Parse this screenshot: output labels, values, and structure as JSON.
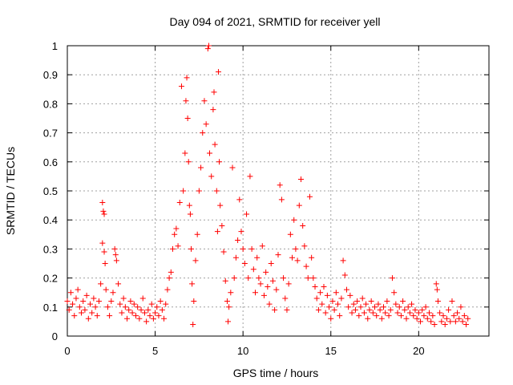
{
  "chart_data": {
    "type": "scatter",
    "title": "Day 094 of 2021, SRMTID for receiver yell",
    "xlabel": "GPS time / hours",
    "ylabel": "SRMTID / TECUs",
    "xlim": [
      0,
      24
    ],
    "ylim": [
      0,
      1
    ],
    "x_ticks": [
      0,
      5,
      10,
      15,
      20
    ],
    "x_tick_labels": [
      "0",
      "5",
      "10",
      "15",
      "20"
    ],
    "y_ticks": [
      0,
      0.1,
      0.2,
      0.3,
      0.4,
      0.5,
      0.6,
      0.7,
      0.8,
      0.9,
      1
    ],
    "y_tick_labels": [
      "0",
      "0.1",
      "0.2",
      "0.3",
      "0.4",
      "0.5",
      "0.6",
      "0.7",
      "0.8",
      "0.9",
      "1"
    ],
    "grid": true,
    "marker": "+",
    "series": [
      {
        "name": "SRMTID",
        "color": "#ff0000",
        "points": [
          [
            0.0,
            0.12
          ],
          [
            0.1,
            0.09
          ],
          [
            0.2,
            0.15
          ],
          [
            0.3,
            0.11
          ],
          [
            0.4,
            0.07
          ],
          [
            0.5,
            0.13
          ],
          [
            0.6,
            0.16
          ],
          [
            0.7,
            0.1
          ],
          [
            0.8,
            0.08
          ],
          [
            0.9,
            0.12
          ],
          [
            1.0,
            0.09
          ],
          [
            1.1,
            0.14
          ],
          [
            1.2,
            0.06
          ],
          [
            1.3,
            0.11
          ],
          [
            1.4,
            0.08
          ],
          [
            1.5,
            0.13
          ],
          [
            1.6,
            0.1
          ],
          [
            1.7,
            0.07
          ],
          [
            1.8,
            0.12
          ],
          [
            1.9,
            0.18
          ],
          [
            2.0,
            0.46
          ],
          [
            2.05,
            0.43
          ],
          [
            2.1,
            0.42
          ],
          [
            2.0,
            0.32
          ],
          [
            2.1,
            0.29
          ],
          [
            2.15,
            0.25
          ],
          [
            2.2,
            0.16
          ],
          [
            2.3,
            0.1
          ],
          [
            2.4,
            0.07
          ],
          [
            2.5,
            0.12
          ],
          [
            2.6,
            0.15
          ],
          [
            2.7,
            0.3
          ],
          [
            2.75,
            0.28
          ],
          [
            2.8,
            0.26
          ],
          [
            2.9,
            0.18
          ],
          [
            3.0,
            0.11
          ],
          [
            3.1,
            0.08
          ],
          [
            3.2,
            0.13
          ],
          [
            3.3,
            0.1
          ],
          [
            3.4,
            0.06
          ],
          [
            3.5,
            0.09
          ],
          [
            3.6,
            0.12
          ],
          [
            3.7,
            0.08
          ],
          [
            3.8,
            0.11
          ],
          [
            3.9,
            0.07
          ],
          [
            4.0,
            0.1
          ],
          [
            4.1,
            0.06
          ],
          [
            4.2,
            0.09
          ],
          [
            4.3,
            0.13
          ],
          [
            4.4,
            0.08
          ],
          [
            4.5,
            0.05
          ],
          [
            4.6,
            0.09
          ],
          [
            4.7,
            0.07
          ],
          [
            4.8,
            0.11
          ],
          [
            4.9,
            0.06
          ],
          [
            5.0,
            0.08
          ],
          [
            5.1,
            0.1
          ],
          [
            5.2,
            0.07
          ],
          [
            5.3,
            0.12
          ],
          [
            5.4,
            0.09
          ],
          [
            5.5,
            0.06
          ],
          [
            5.6,
            0.11
          ],
          [
            5.7,
            0.16
          ],
          [
            5.8,
            0.2
          ],
          [
            5.9,
            0.22
          ],
          [
            6.0,
            0.3
          ],
          [
            6.1,
            0.35
          ],
          [
            6.2,
            0.37
          ],
          [
            6.3,
            0.31
          ],
          [
            6.4,
            0.46
          ],
          [
            6.5,
            0.86
          ],
          [
            6.6,
            0.5
          ],
          [
            6.7,
            0.63
          ],
          [
            6.75,
            0.81
          ],
          [
            6.8,
            0.89
          ],
          [
            6.85,
            0.75
          ],
          [
            6.9,
            0.6
          ],
          [
            6.95,
            0.45
          ],
          [
            7.0,
            0.42
          ],
          [
            7.05,
            0.3
          ],
          [
            7.1,
            0.18
          ],
          [
            7.15,
            0.04
          ],
          [
            7.2,
            0.12
          ],
          [
            7.3,
            0.26
          ],
          [
            7.4,
            0.35
          ],
          [
            7.5,
            0.5
          ],
          [
            7.6,
            0.58
          ],
          [
            7.7,
            0.7
          ],
          [
            7.8,
            0.81
          ],
          [
            7.9,
            0.73
          ],
          [
            8.0,
            0.99
          ],
          [
            8.05,
            1.0
          ],
          [
            8.1,
            0.63
          ],
          [
            8.2,
            0.55
          ],
          [
            8.3,
            0.78
          ],
          [
            8.35,
            0.84
          ],
          [
            8.4,
            0.66
          ],
          [
            8.5,
            0.5
          ],
          [
            8.55,
            0.36
          ],
          [
            8.6,
            0.91
          ],
          [
            8.65,
            0.6
          ],
          [
            8.7,
            0.45
          ],
          [
            8.8,
            0.38
          ],
          [
            8.9,
            0.29
          ],
          [
            9.0,
            0.19
          ],
          [
            9.1,
            0.12
          ],
          [
            9.15,
            0.05
          ],
          [
            9.2,
            0.1
          ],
          [
            9.3,
            0.15
          ],
          [
            9.4,
            0.58
          ],
          [
            9.5,
            0.2
          ],
          [
            9.6,
            0.27
          ],
          [
            9.7,
            0.33
          ],
          [
            9.8,
            0.47
          ],
          [
            9.9,
            0.36
          ],
          [
            10.0,
            0.3
          ],
          [
            10.1,
            0.25
          ],
          [
            10.2,
            0.42
          ],
          [
            10.3,
            0.2
          ],
          [
            10.4,
            0.55
          ],
          [
            10.5,
            0.3
          ],
          [
            10.6,
            0.23
          ],
          [
            10.7,
            0.15
          ],
          [
            10.8,
            0.27
          ],
          [
            10.9,
            0.2
          ],
          [
            11.0,
            0.18
          ],
          [
            11.1,
            0.31
          ],
          [
            11.2,
            0.14
          ],
          [
            11.3,
            0.22
          ],
          [
            11.4,
            0.17
          ],
          [
            11.5,
            0.11
          ],
          [
            11.6,
            0.25
          ],
          [
            11.7,
            0.19
          ],
          [
            11.8,
            0.09
          ],
          [
            11.9,
            0.16
          ],
          [
            12.0,
            0.28
          ],
          [
            12.1,
            0.52
          ],
          [
            12.2,
            0.47
          ],
          [
            12.3,
            0.2
          ],
          [
            12.4,
            0.13
          ],
          [
            12.5,
            0.09
          ],
          [
            12.6,
            0.18
          ],
          [
            12.7,
            0.35
          ],
          [
            12.8,
            0.27
          ],
          [
            12.9,
            0.4
          ],
          [
            13.0,
            0.3
          ],
          [
            13.1,
            0.26
          ],
          [
            13.2,
            0.45
          ],
          [
            13.3,
            0.54
          ],
          [
            13.4,
            0.38
          ],
          [
            13.5,
            0.31
          ],
          [
            13.6,
            0.24
          ],
          [
            13.7,
            0.2
          ],
          [
            13.8,
            0.48
          ],
          [
            13.9,
            0.27
          ],
          [
            14.0,
            0.2
          ],
          [
            14.1,
            0.17
          ],
          [
            14.2,
            0.13
          ],
          [
            14.3,
            0.09
          ],
          [
            14.4,
            0.15
          ],
          [
            14.5,
            0.11
          ],
          [
            14.6,
            0.17
          ],
          [
            14.7,
            0.08
          ],
          [
            14.8,
            0.14
          ],
          [
            14.9,
            0.1
          ],
          [
            15.0,
            0.06
          ],
          [
            15.1,
            0.12
          ],
          [
            15.2,
            0.09
          ],
          [
            15.3,
            0.15
          ],
          [
            15.4,
            0.11
          ],
          [
            15.5,
            0.07
          ],
          [
            15.6,
            0.13
          ],
          [
            15.7,
            0.26
          ],
          [
            15.8,
            0.21
          ],
          [
            15.9,
            0.16
          ],
          [
            16.0,
            0.1
          ],
          [
            16.1,
            0.14
          ],
          [
            16.2,
            0.08
          ],
          [
            16.3,
            0.11
          ],
          [
            16.4,
            0.09
          ],
          [
            16.5,
            0.12
          ],
          [
            16.6,
            0.07
          ],
          [
            16.7,
            0.1
          ],
          [
            16.8,
            0.13
          ],
          [
            16.9,
            0.08
          ],
          [
            17.0,
            0.11
          ],
          [
            17.1,
            0.06
          ],
          [
            17.2,
            0.09
          ],
          [
            17.3,
            0.12
          ],
          [
            17.4,
            0.08
          ],
          [
            17.5,
            0.1
          ],
          [
            17.6,
            0.07
          ],
          [
            17.7,
            0.11
          ],
          [
            17.8,
            0.09
          ],
          [
            17.9,
            0.06
          ],
          [
            18.0,
            0.1
          ],
          [
            18.1,
            0.08
          ],
          [
            18.2,
            0.12
          ],
          [
            18.3,
            0.07
          ],
          [
            18.4,
            0.09
          ],
          [
            18.5,
            0.2
          ],
          [
            18.6,
            0.15
          ],
          [
            18.7,
            0.11
          ],
          [
            18.8,
            0.08
          ],
          [
            18.9,
            0.1
          ],
          [
            19.0,
            0.07
          ],
          [
            19.1,
            0.12
          ],
          [
            19.2,
            0.09
          ],
          [
            19.3,
            0.06
          ],
          [
            19.4,
            0.1
          ],
          [
            19.5,
            0.08
          ],
          [
            19.6,
            0.11
          ],
          [
            19.7,
            0.07
          ],
          [
            19.8,
            0.09
          ],
          [
            19.9,
            0.06
          ],
          [
            20.0,
            0.08
          ],
          [
            20.1,
            0.05
          ],
          [
            20.2,
            0.09
          ],
          [
            20.3,
            0.07
          ],
          [
            20.4,
            0.1
          ],
          [
            20.5,
            0.06
          ],
          [
            20.6,
            0.08
          ],
          [
            20.7,
            0.05
          ],
          [
            20.8,
            0.07
          ],
          [
            20.9,
            0.04
          ],
          [
            21.0,
            0.18
          ],
          [
            21.05,
            0.16
          ],
          [
            21.1,
            0.12
          ],
          [
            21.2,
            0.08
          ],
          [
            21.3,
            0.05
          ],
          [
            21.4,
            0.07
          ],
          [
            21.5,
            0.04
          ],
          [
            21.6,
            0.06
          ],
          [
            21.7,
            0.09
          ],
          [
            21.8,
            0.05
          ],
          [
            21.9,
            0.12
          ],
          [
            22.0,
            0.07
          ],
          [
            22.1,
            0.05
          ],
          [
            22.2,
            0.08
          ],
          [
            22.3,
            0.06
          ],
          [
            22.4,
            0.1
          ],
          [
            22.5,
            0.05
          ],
          [
            22.6,
            0.07
          ],
          [
            22.7,
            0.04
          ],
          [
            22.8,
            0.06
          ]
        ]
      }
    ]
  }
}
